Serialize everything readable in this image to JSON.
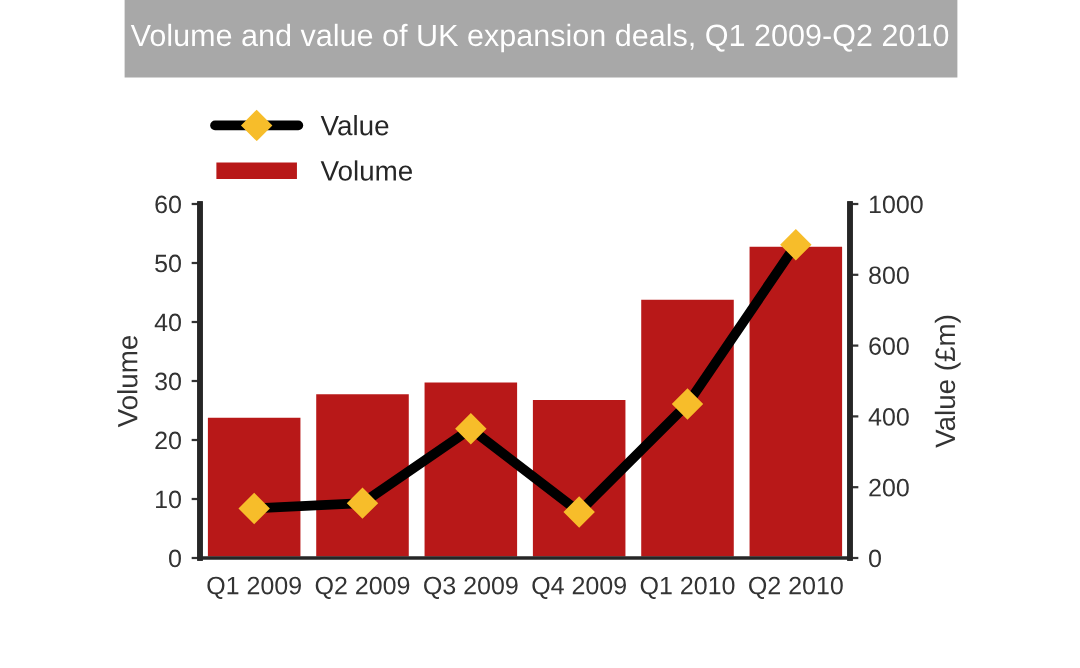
{
  "chart_data": {
    "type": "bar",
    "title": "Volume and value of UK expansion deals, Q1 2009-Q2 2010",
    "categories": [
      "Q1 2009",
      "Q2 2009",
      "Q3 2009",
      "Q4 2009",
      "Q1 2010",
      "Q2 2010"
    ],
    "series": [
      {
        "name": "Value",
        "type": "line",
        "axis": "y2",
        "color": "#000000",
        "marker": "diamond",
        "values": [
          140,
          155,
          365,
          130,
          435,
          885
        ]
      },
      {
        "name": "Volume",
        "color": "#b81818",
        "values": [
          24,
          28,
          30,
          27,
          44,
          53
        ]
      }
    ],
    "ylabel": "Volume",
    "y2label": "Value (£m)",
    "ylim": [
      0,
      60
    ],
    "yticks": [
      0,
      10,
      20,
      30,
      40,
      50,
      60
    ],
    "y2lim": [
      0,
      1000
    ],
    "y2ticks": [
      0,
      200,
      400,
      600,
      800,
      1000
    ],
    "grid": false,
    "legend": "top left"
  }
}
